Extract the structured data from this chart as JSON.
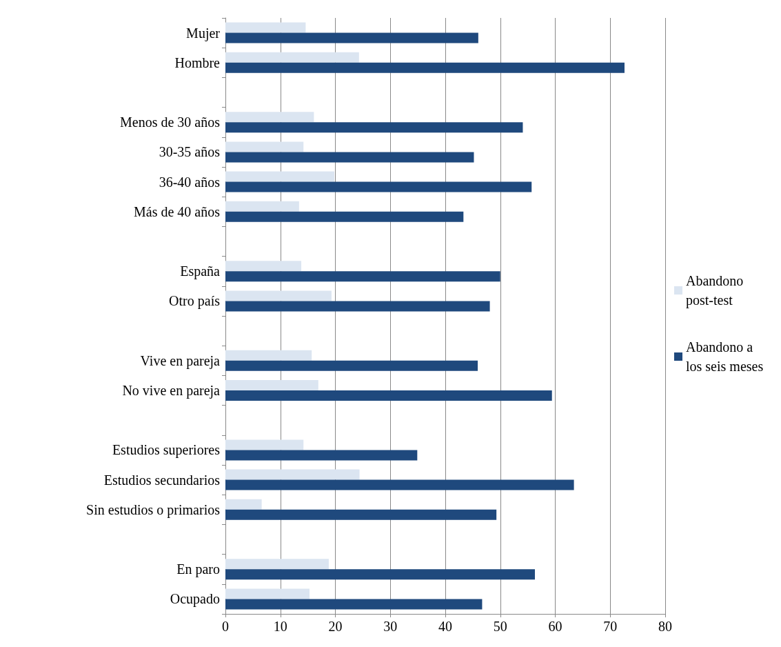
{
  "chart_data": {
    "type": "bar",
    "orientation": "horizontal",
    "categories": [
      "Mujer",
      "Hombre",
      null,
      "Menos de 30 años",
      "30-35 años",
      "36-40 años",
      "Más de 40 años",
      null,
      "España",
      "Otro país",
      null,
      "Vive en pareja",
      "No vive en pareja",
      null,
      "Estudios superiores",
      "Estudios secundarios",
      "Sin estudios o primarios",
      null,
      "En paro",
      "Ocupado"
    ],
    "series": [
      {
        "name": "Abandono post-test",
        "color": "#dbe5f1",
        "values": [
          14.6,
          24.3,
          null,
          16.1,
          14.2,
          19.8,
          13.4,
          null,
          13.8,
          19.3,
          null,
          15.7,
          16.9,
          null,
          14.2,
          24.4,
          6.6,
          null,
          18.8,
          15.3
        ]
      },
      {
        "name": "Abandono a los seis meses",
        "color": "#1f497d",
        "values": [
          46.0,
          72.6,
          null,
          54.1,
          45.2,
          55.7,
          43.3,
          null,
          50.0,
          48.1,
          null,
          45.9,
          59.4,
          null,
          34.9,
          63.4,
          49.3,
          null,
          56.3,
          46.7
        ]
      }
    ],
    "xlim": [
      0,
      80
    ],
    "xticks": [
      0,
      10,
      20,
      30,
      40,
      50,
      60,
      70,
      80
    ],
    "grid": "x",
    "legend": "right"
  }
}
